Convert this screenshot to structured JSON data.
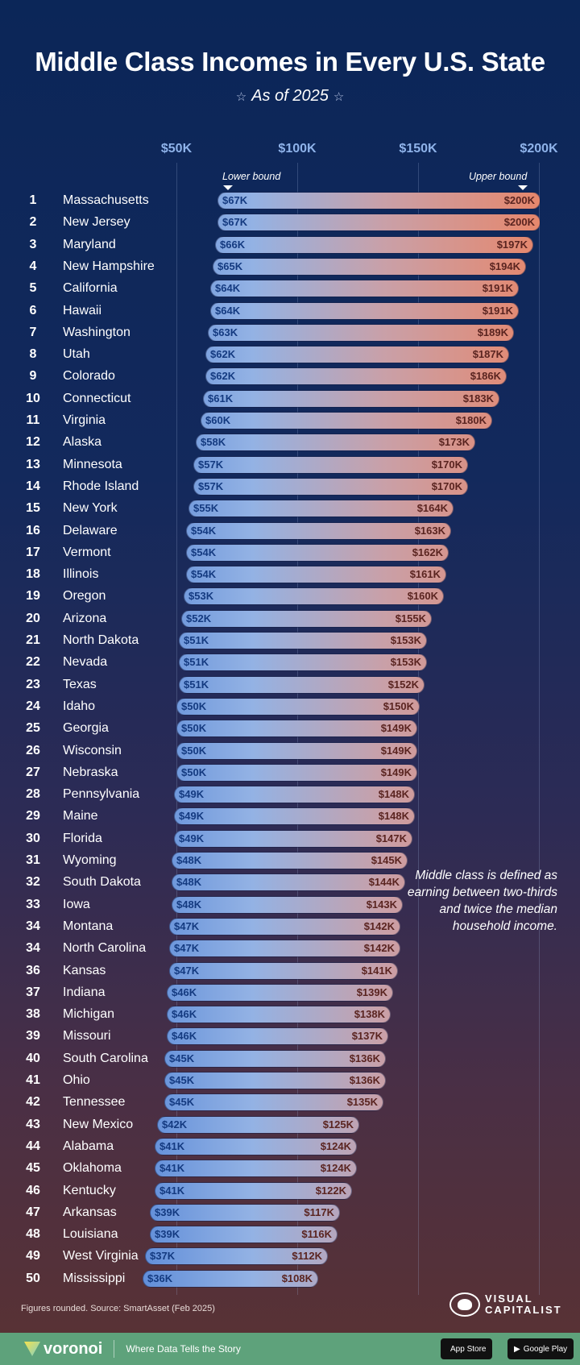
{
  "title": "Middle Class Incomes in Every U.S. State",
  "subtitle": "As of 2025",
  "annotations": {
    "lower": "Lower bound",
    "upper": "Upper bound",
    "note": "Middle class is defined as earning between two-thirds and twice the median household income.",
    "source": "Figures rounded. Source: SmartAsset (Feb 2025)"
  },
  "brand": {
    "vc_line1": "VISUAL",
    "vc_line2": "CAPITALIST",
    "voronoi": "voronoi",
    "tagline": "Where Data Tells the Story",
    "app_store": "App Store",
    "google_play": "Google Play"
  },
  "colors": {
    "bar_low": "#5b8ad8",
    "bar_high": "#e6876c",
    "footer": "#5ea27b"
  },
  "chart_data": {
    "type": "range-bar",
    "title": "Middle Class Incomes in Every U.S. State",
    "xlim": [
      50,
      200
    ],
    "x_unit": "$K",
    "ticks": [
      "$50K",
      "$100K",
      "$150K",
      "$200K"
    ],
    "tick_values": [
      50,
      100,
      150,
      200
    ],
    "grid": true,
    "rows": [
      {
        "rank": "1",
        "state": "Massachusetts",
        "low": 67,
        "high": 200
      },
      {
        "rank": "2",
        "state": "New Jersey",
        "low": 67,
        "high": 200
      },
      {
        "rank": "3",
        "state": "Maryland",
        "low": 66,
        "high": 197
      },
      {
        "rank": "4",
        "state": "New Hampshire",
        "low": 65,
        "high": 194
      },
      {
        "rank": "5",
        "state": "California",
        "low": 64,
        "high": 191
      },
      {
        "rank": "6",
        "state": "Hawaii",
        "low": 64,
        "high": 191
      },
      {
        "rank": "7",
        "state": "Washington",
        "low": 63,
        "high": 189
      },
      {
        "rank": "8",
        "state": "Utah",
        "low": 62,
        "high": 187
      },
      {
        "rank": "9",
        "state": "Colorado",
        "low": 62,
        "high": 186
      },
      {
        "rank": "10",
        "state": "Connecticut",
        "low": 61,
        "high": 183
      },
      {
        "rank": "11",
        "state": "Virginia",
        "low": 60,
        "high": 180
      },
      {
        "rank": "12",
        "state": "Alaska",
        "low": 58,
        "high": 173
      },
      {
        "rank": "13",
        "state": "Minnesota",
        "low": 57,
        "high": 170
      },
      {
        "rank": "14",
        "state": "Rhode Island",
        "low": 57,
        "high": 170
      },
      {
        "rank": "15",
        "state": "New York",
        "low": 55,
        "high": 164
      },
      {
        "rank": "16",
        "state": "Delaware",
        "low": 54,
        "high": 163
      },
      {
        "rank": "17",
        "state": "Vermont",
        "low": 54,
        "high": 162
      },
      {
        "rank": "18",
        "state": "Illinois",
        "low": 54,
        "high": 161
      },
      {
        "rank": "19",
        "state": "Oregon",
        "low": 53,
        "high": 160
      },
      {
        "rank": "20",
        "state": "Arizona",
        "low": 52,
        "high": 155
      },
      {
        "rank": "21",
        "state": "North Dakota",
        "low": 51,
        "high": 153
      },
      {
        "rank": "22",
        "state": "Nevada",
        "low": 51,
        "high": 153
      },
      {
        "rank": "23",
        "state": "Texas",
        "low": 51,
        "high": 152
      },
      {
        "rank": "24",
        "state": "Idaho",
        "low": 50,
        "high": 150
      },
      {
        "rank": "25",
        "state": "Georgia",
        "low": 50,
        "high": 149
      },
      {
        "rank": "26",
        "state": "Wisconsin",
        "low": 50,
        "high": 149
      },
      {
        "rank": "27",
        "state": "Nebraska",
        "low": 50,
        "high": 149
      },
      {
        "rank": "28",
        "state": "Pennsylvania",
        "low": 49,
        "high": 148
      },
      {
        "rank": "29",
        "state": "Maine",
        "low": 49,
        "high": 148
      },
      {
        "rank": "30",
        "state": "Florida",
        "low": 49,
        "high": 147
      },
      {
        "rank": "31",
        "state": "Wyoming",
        "low": 48,
        "high": 145
      },
      {
        "rank": "32",
        "state": "South Dakota",
        "low": 48,
        "high": 144
      },
      {
        "rank": "33",
        "state": "Iowa",
        "low": 48,
        "high": 143
      },
      {
        "rank": "34",
        "state": "Montana",
        "low": 47,
        "high": 142
      },
      {
        "rank": "34",
        "state": "North Carolina",
        "low": 47,
        "high": 142
      },
      {
        "rank": "36",
        "state": "Kansas",
        "low": 47,
        "high": 141
      },
      {
        "rank": "37",
        "state": "Indiana",
        "low": 46,
        "high": 139
      },
      {
        "rank": "38",
        "state": "Michigan",
        "low": 46,
        "high": 138
      },
      {
        "rank": "39",
        "state": "Missouri",
        "low": 46,
        "high": 137
      },
      {
        "rank": "40",
        "state": "South Carolina",
        "low": 45,
        "high": 136
      },
      {
        "rank": "41",
        "state": "Ohio",
        "low": 45,
        "high": 136
      },
      {
        "rank": "42",
        "state": "Tennessee",
        "low": 45,
        "high": 135
      },
      {
        "rank": "43",
        "state": "New Mexico",
        "low": 42,
        "high": 125
      },
      {
        "rank": "44",
        "state": "Alabama",
        "low": 41,
        "high": 124
      },
      {
        "rank": "45",
        "state": "Oklahoma",
        "low": 41,
        "high": 124
      },
      {
        "rank": "46",
        "state": "Kentucky",
        "low": 41,
        "high": 122
      },
      {
        "rank": "47",
        "state": "Arkansas",
        "low": 39,
        "high": 117
      },
      {
        "rank": "48",
        "state": "Louisiana",
        "low": 39,
        "high": 116
      },
      {
        "rank": "49",
        "state": "West Virginia",
        "low": 37,
        "high": 112
      },
      {
        "rank": "50",
        "state": "Mississippi",
        "low": 36,
        "high": 108
      }
    ]
  }
}
